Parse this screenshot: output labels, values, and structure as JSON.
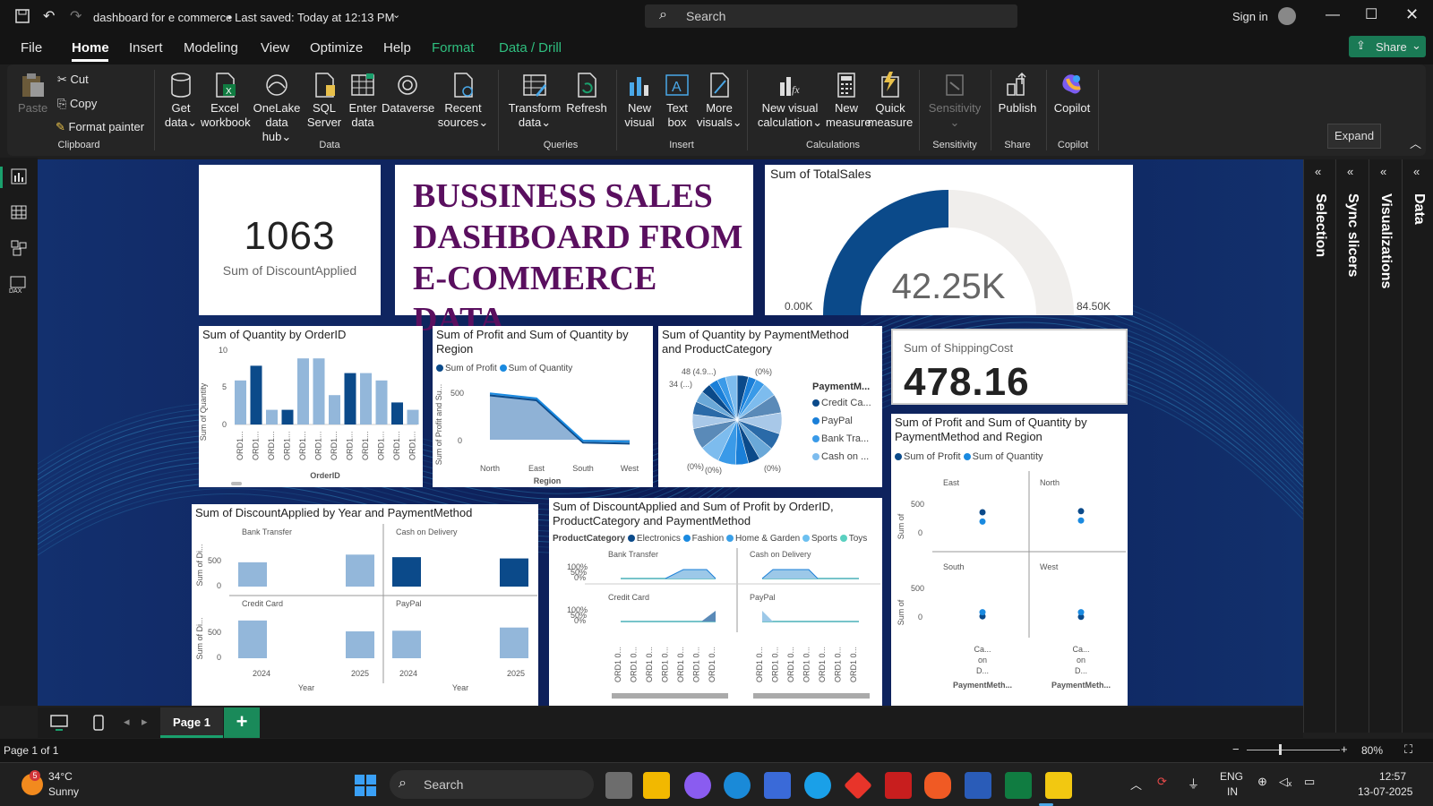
{
  "window": {
    "title": "dashboard for e commerce",
    "saved": "• Last saved: Today at 12:13 PM",
    "search": "Search",
    "sign_in": "Sign in"
  },
  "menu": [
    "File",
    "Home",
    "Insert",
    "Modeling",
    "View",
    "Optimize",
    "Help",
    "Format",
    "Data / Drill"
  ],
  "share": "Share",
  "clipboard": {
    "paste": "Paste",
    "cut": "Cut",
    "copy": "Copy",
    "painter": "Format painter",
    "group": "Clipboard"
  },
  "ribbon": {
    "data": [
      {
        "l1": "Get",
        "l2": "data"
      },
      {
        "l1": "Excel",
        "l2": "workbook"
      },
      {
        "l1": "OneLake",
        "l2": "data hub"
      },
      {
        "l1": "SQL",
        "l2": "Server"
      },
      {
        "l1": "Enter",
        "l2": "data"
      },
      {
        "l1": "Dataverse",
        "l2": ""
      },
      {
        "l1": "Recent",
        "l2": "sources"
      }
    ],
    "data_group": "Data",
    "queries": [
      {
        "l1": "Transform",
        "l2": "data"
      },
      {
        "l1": "Refresh",
        "l2": ""
      }
    ],
    "queries_group": "Queries",
    "insert": [
      {
        "l1": "New",
        "l2": "visual"
      },
      {
        "l1": "Text",
        "l2": "box"
      },
      {
        "l1": "More",
        "l2": "visuals"
      }
    ],
    "insert_group": "Insert",
    "calc": [
      {
        "l1": "New visual",
        "l2": "calculation"
      },
      {
        "l1": "New",
        "l2": "measure"
      },
      {
        "l1": "Quick",
        "l2": "measure"
      }
    ],
    "calc_group": "Calculations",
    "sens": {
      "l1": "Sensitivity",
      "group": "Sensitivity"
    },
    "publish": {
      "l1": "Publish",
      "group": "Share"
    },
    "copilot": {
      "l1": "Copilot",
      "group": "Copilot"
    },
    "expand_tip": "Expand"
  },
  "panes": [
    "Selection",
    "Sync slicers",
    "Visualizations",
    "Data"
  ],
  "kpi1": {
    "value": "1063",
    "label": "Sum of DiscountApplied"
  },
  "title_card": {
    "line1": "BUSSINESS SALES",
    "line2": "DASHBOARD FROM",
    "line3": "E-COMMERCE DATA"
  },
  "gauge": {
    "title": "Sum of TotalSales",
    "value": "42.25K",
    "min": "0.00K",
    "max": "84.50K",
    "fraction": 0.5
  },
  "kpi2": {
    "label": "Sum of ShippingCost",
    "value": "478.16"
  },
  "chart1": {
    "title": "Sum of Quantity by OrderID",
    "ylabel": "Sum of Quantity",
    "xlabel": "OrderID",
    "ticks": [
      "10",
      "5",
      "0"
    ],
    "tick_label": "ORD1..."
  },
  "chart2": {
    "title1": "Sum of Profit and Sum of Quantity by",
    "title2": "Region",
    "legend": [
      "Sum of Profit",
      "Sum of Quantity"
    ],
    "ylabel": "Sum of Profit and Su...",
    "xlabel": "Region",
    "ticks": [
      "500",
      "0"
    ]
  },
  "chart3": {
    "title1": "Sum of Quantity by PaymentMethod",
    "title2": "and ProductCategory",
    "legend_title": "PaymentM...",
    "legend": [
      "Credit Ca...",
      "PayPal",
      "Bank Tra...",
      "Cash on ..."
    ],
    "labels": [
      "48 (4.9...)",
      "34 (...)",
      "(0%)",
      "(0%)",
      "(0%)",
      "(0%)"
    ]
  },
  "chart4": {
    "title1": "Sum of Profit and Sum of Quantity by",
    "title2": "PaymentMethod and Region",
    "legend": [
      "Sum of Profit",
      "Sum of Quantity"
    ],
    "regions": [
      "East",
      "North",
      "South",
      "West"
    ],
    "ylabel": "Sum of",
    "ticks": [
      "500",
      "0"
    ],
    "xcat": [
      "Ca...",
      "on",
      "D..."
    ],
    "xlabel": "PaymentMeth..."
  },
  "chart5": {
    "title": "Sum of DiscountApplied by Year and PaymentMethod",
    "panels": [
      "Bank Transfer",
      "Cash on Delivery",
      "Credit Card",
      "PayPal"
    ],
    "ylabel": "Sum of Di...",
    "ticks": [
      "500",
      "0"
    ],
    "years": [
      "2024",
      "2025"
    ],
    "xlabel": "Year"
  },
  "chart6": {
    "title1": "Sum of DiscountApplied and Sum of Profit by OrderID,",
    "title2": "ProductCategory and PaymentMethod",
    "legend_title": "ProductCategory",
    "legend": [
      "Electronics",
      "Fashion",
      "Home & Garden",
      "Sports",
      "Toys"
    ],
    "panels": [
      "Bank Transfer",
      "Cash on Delivery",
      "Credit Card",
      "PayPal"
    ],
    "ticks": [
      "100%",
      "50%",
      "0%"
    ],
    "tick_label": "ORD1 0..."
  },
  "chart_data": [
    {
      "type": "bar",
      "title": "Sum of Quantity by OrderID",
      "ylabel": "Sum of Quantity",
      "xlabel": "OrderID",
      "ylim": [
        0,
        10
      ],
      "values": [
        6,
        8,
        2,
        2,
        9,
        9,
        4,
        7,
        7,
        6,
        3,
        2
      ],
      "highlight": [
        false,
        true,
        false,
        true,
        false,
        false,
        false,
        true,
        false,
        false,
        true,
        false
      ]
    },
    {
      "type": "area",
      "title": "Sum of Profit and Sum of Quantity by Region",
      "categories": [
        "North",
        "East",
        "South",
        "West"
      ],
      "series": [
        {
          "name": "Sum of Profit",
          "values": [
            450,
            400,
            -30,
            -40
          ]
        },
        {
          "name": "Sum of Quantity",
          "values": [
            470,
            420,
            -10,
            -20
          ]
        }
      ]
    },
    {
      "type": "pie",
      "title": "Sum of Quantity by PaymentMethod and ProductCategory",
      "values": [
        48,
        34,
        40,
        60,
        80,
        90,
        70,
        65,
        50,
        55,
        75,
        85,
        90,
        60,
        55,
        48,
        42,
        38,
        36,
        50
      ]
    },
    {
      "type": "scatter",
      "title": "Sum of Profit and Sum of Quantity by PaymentMethod and Region",
      "points": [
        {
          "region": "East",
          "profit": 400,
          "quantity": 60
        },
        {
          "region": "North",
          "profit": 420,
          "quantity": 80
        },
        {
          "region": "South",
          "profit": 30,
          "quantity": -60
        },
        {
          "region": "West",
          "profit": 20,
          "quantity": -60
        }
      ]
    },
    {
      "type": "bar",
      "title": "Sum of DiscountApplied by Year and PaymentMethod",
      "panels": [
        {
          "name": "Bank Transfer",
          "values": [
            380,
            500
          ]
        },
        {
          "name": "Cash on Delivery",
          "values": [
            460,
            440
          ]
        },
        {
          "name": "Credit Card",
          "values": [
            590,
            420
          ]
        },
        {
          "name": "PayPal",
          "values": [
            430,
            480
          ]
        }
      ]
    }
  ],
  "page": {
    "tab": "Page 1",
    "status": "Page 1 of 1",
    "zoom": "80%"
  },
  "taskbar": {
    "temp": "34°C",
    "weather": "Sunny",
    "search": "Search",
    "lang1": "ENG",
    "lang2": "IN",
    "time": "12:57",
    "date": "13-07-2025",
    "badge": "5"
  },
  "colors": {
    "dark": "#0b4a8a",
    "light": "#93b7da",
    "canvas": "#0d1a4a",
    "title": "#5a0f5f",
    "accent": "#1aa06d",
    "excel": "#107c41"
  }
}
